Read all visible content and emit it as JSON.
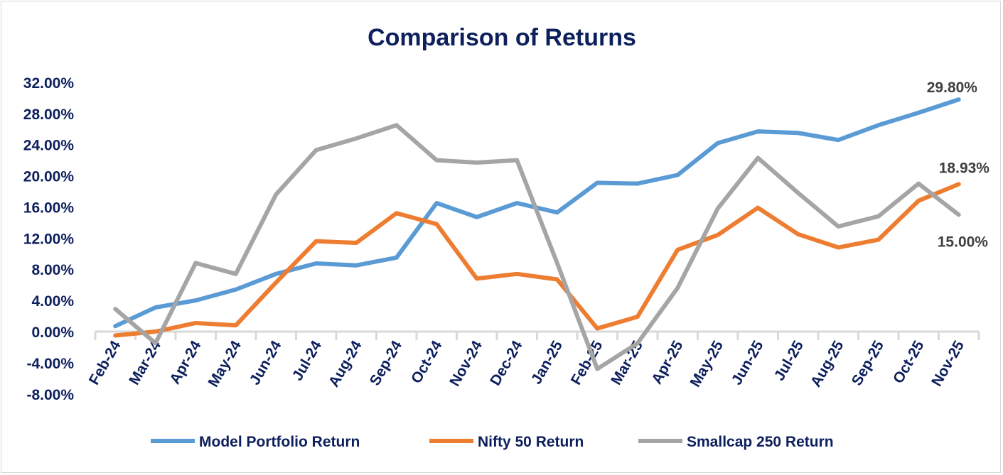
{
  "chart_data": {
    "type": "line",
    "title": "Comparison of Returns",
    "xlabel": "",
    "ylabel": "",
    "ylim": [
      -8,
      32
    ],
    "ytick_step": 4,
    "ytick_labels": [
      "-8.00%",
      "-4.00%",
      "0.00%",
      "4.00%",
      "8.00%",
      "12.00%",
      "16.00%",
      "20.00%",
      "24.00%",
      "28.00%",
      "32.00%"
    ],
    "grid": false,
    "legend_position": "bottom",
    "categories": [
      "Feb-24",
      "Mar-24",
      "Apr-24",
      "May-24",
      "Jun-24",
      "Jul-24",
      "Aug-24",
      "Sep-24",
      "Oct-24",
      "Nov-24",
      "Dec-24",
      "Jan-25",
      "Feb-25",
      "Mar-25",
      "Apr-25",
      "May-25",
      "Jun-25",
      "Jul-25",
      "Aug-25",
      "Sep-25",
      "Oct-25",
      "Nov-25"
    ],
    "series": [
      {
        "name": "Model Portfolio Return",
        "color": "#5b9bd5",
        "end_label": "29.80%",
        "values": [
          0.7,
          3.1,
          4.0,
          5.4,
          7.4,
          8.75,
          8.5,
          9.5,
          16.5,
          14.7,
          16.5,
          15.3,
          19.1,
          19.0,
          20.1,
          24.2,
          25.7,
          25.5,
          24.6,
          26.5,
          28.1,
          29.8
        ]
      },
      {
        "name": "Nifty 50 Return",
        "color": "#ed7d31",
        "end_label": "18.93%",
        "values": [
          -0.5,
          0.0,
          1.1,
          0.8,
          6.3,
          11.6,
          11.4,
          15.2,
          13.8,
          6.8,
          7.4,
          6.7,
          0.4,
          1.9,
          10.5,
          12.4,
          15.9,
          12.5,
          10.8,
          11.8,
          16.8,
          18.93
        ]
      },
      {
        "name": "Smallcap 250 Return",
        "color": "#a5a5a5",
        "end_label": "15.00%",
        "values": [
          2.9,
          -1.5,
          8.8,
          7.4,
          17.6,
          23.3,
          24.8,
          26.5,
          22.0,
          21.7,
          22.0,
          8.8,
          -4.8,
          -1.5,
          5.6,
          15.8,
          22.3,
          17.8,
          13.5,
          14.8,
          19.0,
          15.0
        ]
      }
    ]
  }
}
